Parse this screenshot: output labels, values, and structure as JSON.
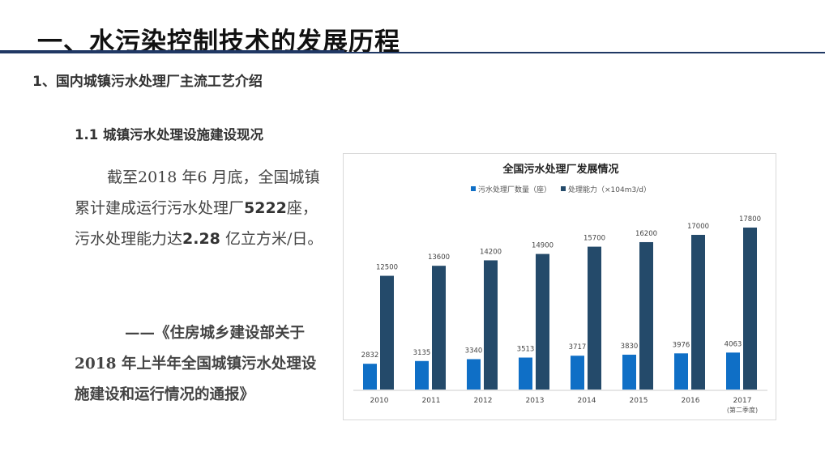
{
  "header": {
    "title": "一、水污染控制技术的发展历程"
  },
  "section": {
    "heading": "1、国内城镇污水处理厂主流工艺介绍",
    "subheading": "1.1 城镇污水处理设施建设现况"
  },
  "body": {
    "t1": "截至2018 年6 月底，全国城镇累计建成运行污水处理厂",
    "n1": "5222",
    "t2": "座，污水处理能力达",
    "n2": "2.28",
    "t3": " 亿立方米/日。"
  },
  "citation": {
    "text": "——《住房城乡建设部关于2018 年上半年全国城镇污水处理设施建设和运行情况的通报》"
  },
  "chart_data": {
    "type": "bar",
    "title": "全国污水处理厂发展情况",
    "categories": [
      "2010",
      "2011",
      "2012",
      "2013",
      "2014",
      "2015",
      "2016",
      "2017"
    ],
    "category_notes": [
      "",
      "",
      "",
      "",
      "",
      "",
      "",
      "(第二季度)"
    ],
    "series": [
      {
        "name": "污水处理厂数量（座）",
        "color": "#0f6fc6",
        "values": [
          2832,
          3135,
          3340,
          3513,
          3717,
          3830,
          3976,
          4063
        ]
      },
      {
        "name": "处理能力（×104m3/d）",
        "color": "#244a6a",
        "values": [
          12500,
          13600,
          14200,
          14900,
          15700,
          16200,
          17000,
          17800
        ]
      }
    ],
    "ylim": [
      0,
      20000
    ],
    "legend": "top",
    "grid": false
  }
}
